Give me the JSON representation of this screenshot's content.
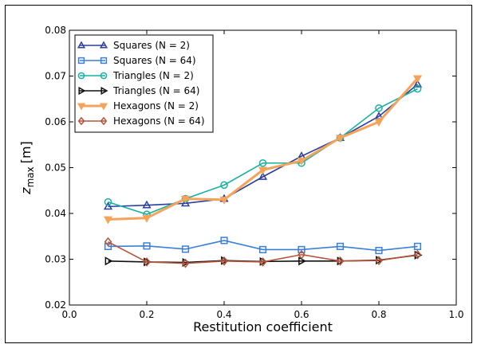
{
  "chart_data": {
    "type": "line",
    "xlabel": "Restitution coefficient",
    "ylabel": "z",
    "ylabel_sub": "max",
    "ylabel_unit": "[m]",
    "xlim": [
      0.0,
      1.0
    ],
    "ylim": [
      0.02,
      0.08
    ],
    "xticks": [
      "0.0",
      "0.2",
      "0.4",
      "0.6",
      "0.8",
      "1.0"
    ],
    "yticks": [
      "0.02",
      "0.03",
      "0.04",
      "0.05",
      "0.06",
      "0.07",
      "0.08"
    ],
    "grid": false,
    "legend_position": "top-left",
    "x": [
      0.1,
      0.2,
      0.3,
      0.4,
      0.5,
      0.6,
      0.7,
      0.8,
      0.9
    ],
    "series": [
      {
        "name": "Squares",
        "n_label": "(N = 2)",
        "color": "#2a3f9e",
        "marker": "triangle-up",
        "values": [
          0.0415,
          0.0418,
          0.0422,
          0.0432,
          0.048,
          0.0525,
          0.0565,
          0.0612,
          0.0682
        ]
      },
      {
        "name": "Squares",
        "n_label": "(N = 64)",
        "color": "#3a7fd8",
        "marker": "square",
        "values": [
          0.0328,
          0.0329,
          0.0322,
          0.0341,
          0.0321,
          0.0321,
          0.0328,
          0.0319,
          0.0328
        ]
      },
      {
        "name": "Triangles",
        "n_label": "(N = 2)",
        "color": "#1ab0a0",
        "marker": "circle",
        "values": [
          0.0425,
          0.0398,
          0.0432,
          0.0462,
          0.051,
          0.051,
          0.0565,
          0.063,
          0.0672
        ]
      },
      {
        "name": "Triangles",
        "n_label": "(N = 64)",
        "color": "#111111",
        "marker": "triangle-right",
        "values": [
          0.0296,
          0.0294,
          0.0293,
          0.0297,
          0.0295,
          0.0296,
          0.0296,
          0.0298,
          0.0309
        ]
      },
      {
        "name": "Hexagons",
        "n_label": "(N = 2)",
        "color": "#f5a35a",
        "marker": "triangle-down",
        "values": [
          0.0387,
          0.039,
          0.0432,
          0.043,
          0.0495,
          0.0515,
          0.0565,
          0.06,
          0.0695
        ]
      },
      {
        "name": "Hexagons",
        "n_label": "(N = 64)",
        "color": "#b5533a",
        "marker": "diamond",
        "values": [
          0.0338,
          0.0294,
          0.0291,
          0.0296,
          0.0294,
          0.031,
          0.0296,
          0.0297,
          0.031
        ]
      }
    ]
  }
}
